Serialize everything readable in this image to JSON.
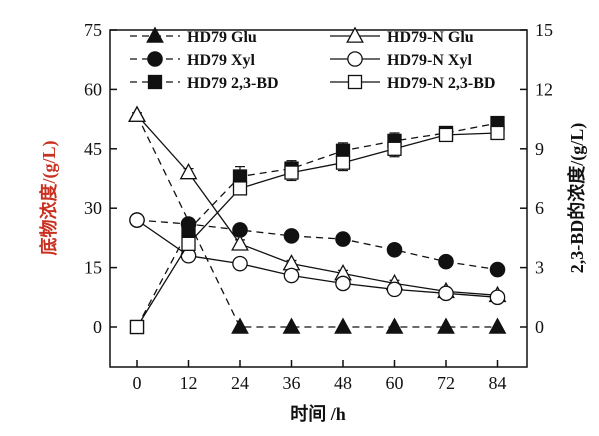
{
  "chart_data": {
    "type": "line",
    "x": [
      0,
      12,
      24,
      36,
      48,
      60,
      72,
      84
    ],
    "xlabel": "时间 /h",
    "ylabel_left": "底物浓度/(g/L)",
    "ylabel_right": "2,3-BD的浓度/(g/L)",
    "ylim_left": [
      0,
      75
    ],
    "ylim_right": [
      0,
      15
    ],
    "xticks": [
      "0",
      "12",
      "24",
      "36",
      "48",
      "60",
      "72",
      "84"
    ],
    "yticks_left": [
      "0",
      "15",
      "30",
      "45",
      "60",
      "75"
    ],
    "yticks_right": [
      "0",
      "3",
      "6",
      "9",
      "12",
      "15"
    ],
    "legend_placement": "top",
    "series": [
      {
        "name": "HD79 Glu",
        "axis": "left",
        "marker": "triangle",
        "filled": true,
        "dashed": true,
        "values": [
          53.5,
          null,
          0,
          0,
          0,
          0,
          0,
          0
        ],
        "errors": [
          0,
          0,
          0,
          0,
          0,
          0,
          0,
          0
        ]
      },
      {
        "name": "HD79 Xyl",
        "axis": "left",
        "marker": "circle",
        "filled": true,
        "dashed": true,
        "values": [
          27,
          26,
          24.5,
          23,
          22.2,
          19.5,
          16.5,
          14.5
        ],
        "errors": [
          0.6,
          0.8,
          0.6,
          0.6,
          1.2,
          0.6,
          0.6,
          0.6
        ]
      },
      {
        "name": "HD79 2,3-BD",
        "axis": "right",
        "marker": "square",
        "filled": true,
        "dashed": true,
        "values": [
          0,
          4.9,
          7.6,
          8.0,
          8.9,
          9.4,
          9.8,
          10.3
        ],
        "errors": [
          0,
          0.3,
          0.5,
          0.4,
          0.4,
          0.4,
          0.3,
          0.3
        ]
      },
      {
        "name": "HD79-N Glu",
        "axis": "left",
        "marker": "triangle",
        "filled": false,
        "dashed": false,
        "values": [
          53.5,
          39,
          21,
          16,
          13.5,
          11,
          9,
          8
        ],
        "errors": [
          0.6,
          1,
          1,
          0.8,
          0.8,
          0.8,
          0.8,
          0.8
        ]
      },
      {
        "name": "HD79-N Xyl",
        "axis": "left",
        "marker": "circle",
        "filled": false,
        "dashed": false,
        "values": [
          27,
          18,
          16,
          13,
          11,
          9.5,
          8.5,
          7.5
        ],
        "errors": [
          0.8,
          0.6,
          0.6,
          0.6,
          0.6,
          0.6,
          0.6,
          0.6
        ]
      },
      {
        "name": "HD79-N 2,3-BD",
        "axis": "right",
        "marker": "square",
        "filled": false,
        "dashed": false,
        "values": [
          0,
          4.2,
          7.0,
          7.8,
          8.3,
          9.0,
          9.7,
          9.8
        ],
        "errors": [
          0,
          0.3,
          0.3,
          0.4,
          0.4,
          0.4,
          0.3,
          0.3
        ]
      }
    ]
  },
  "legend": {
    "items": [
      {
        "label": "HD79 Glu"
      },
      {
        "label": "HD79-N Glu"
      },
      {
        "label": "HD79 Xyl"
      },
      {
        "label": "HD79-N Xyl"
      },
      {
        "label": "HD79 2,3-BD"
      },
      {
        "label": "HD79-N 2,3-BD"
      }
    ]
  },
  "colors": {
    "line": "#111111",
    "left_axis_label": "#c9301f"
  }
}
